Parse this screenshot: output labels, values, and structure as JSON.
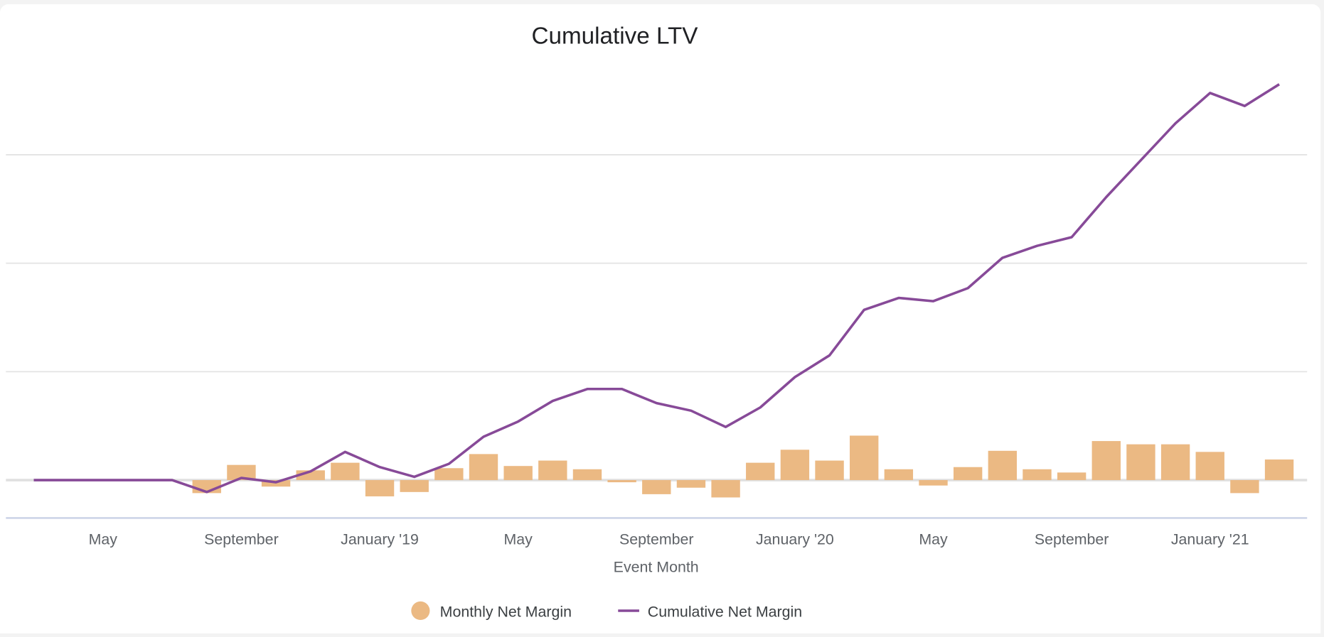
{
  "chart_data": {
    "type": "bar+line",
    "title": "Cumulative LTV",
    "xlabel": "Event Month",
    "ylabel": "",
    "ylim": [
      -35,
      400
    ],
    "gridlines": [
      0,
      100,
      200,
      300
    ],
    "grid": true,
    "legend_position": "bottom",
    "x": [
      "Mar 2018",
      "Apr 2018",
      "May 2018",
      "Jun 2018",
      "Jul 2018",
      "Aug 2018",
      "Sep 2018",
      "Oct 2018",
      "Nov 2018",
      "Dec 2018",
      "Jan 2019",
      "Feb 2019",
      "Mar 2019",
      "Apr 2019",
      "May 2019",
      "Jun 2019",
      "Jul 2019",
      "Aug 2019",
      "Sep 2019",
      "Oct 2019",
      "Nov 2019",
      "Dec 2019",
      "Jan 2020",
      "Feb 2020",
      "Mar 2020",
      "Apr 2020",
      "May 2020",
      "Jun 2020",
      "Jul 2020",
      "Aug 2020",
      "Sep 2020",
      "Oct 2020",
      "Nov 2020",
      "Dec 2020",
      "Jan 2021",
      "Feb 2021",
      "Mar 2021"
    ],
    "x_ticks": [
      {
        "index": 2,
        "label": "May"
      },
      {
        "index": 6,
        "label": "September"
      },
      {
        "index": 10,
        "label": "January '19"
      },
      {
        "index": 14,
        "label": "May"
      },
      {
        "index": 18,
        "label": "September"
      },
      {
        "index": 22,
        "label": "January '20"
      },
      {
        "index": 26,
        "label": "May"
      },
      {
        "index": 30,
        "label": "September"
      },
      {
        "index": 34,
        "label": "January '21"
      }
    ],
    "series": [
      {
        "name": "Monthly Net Margin",
        "type": "bar",
        "color": "#ebb983",
        "values": [
          0,
          0,
          0,
          0,
          0,
          -12,
          14,
          -6,
          9,
          16,
          -15,
          -11,
          11,
          24,
          13,
          18,
          10,
          -2,
          -13,
          -7,
          -16,
          16,
          28,
          18,
          41,
          10,
          -5,
          12,
          27,
          10,
          7,
          36,
          33,
          33,
          26,
          -12,
          19
        ]
      },
      {
        "name": "Cumulative Net Margin",
        "type": "line",
        "color": "#874a98",
        "values": [
          0,
          0,
          0,
          0,
          0,
          -11,
          2,
          -2,
          8,
          26,
          12,
          3,
          15,
          40,
          54,
          73,
          84,
          84,
          71,
          64,
          49,
          67,
          95,
          115,
          157,
          168,
          165,
          177,
          205,
          216,
          224,
          261,
          295,
          329,
          357,
          345,
          365
        ]
      }
    ]
  }
}
